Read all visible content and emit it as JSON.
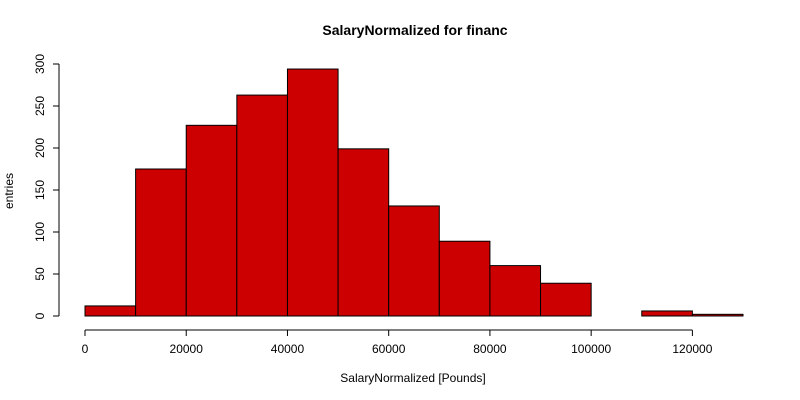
{
  "chart_data": {
    "type": "bar",
    "title": "SalaryNormalized for financ",
    "xlabel": "SalaryNormalized [Pounds]",
    "ylabel": "entries",
    "bin_edges": [
      0,
      10000,
      20000,
      30000,
      40000,
      50000,
      60000,
      70000,
      80000,
      90000,
      100000,
      110000,
      120000,
      130000
    ],
    "values": [
      12,
      175,
      227,
      263,
      294,
      199,
      131,
      89,
      60,
      39,
      0,
      6,
      2
    ],
    "xlim": [
      0,
      130000
    ],
    "ylim": [
      0,
      300
    ],
    "x_ticks": [
      0,
      20000,
      40000,
      60000,
      80000,
      100000,
      120000
    ],
    "x_tick_labels": [
      "0",
      "20000",
      "40000",
      "60000",
      "80000",
      "100000",
      "120000"
    ],
    "y_ticks": [
      0,
      50,
      100,
      150,
      200,
      250,
      300
    ],
    "y_tick_labels": [
      "0",
      "50",
      "100",
      "150",
      "200",
      "250",
      "300"
    ],
    "bar_color": "#cc0000",
    "grid": false
  }
}
